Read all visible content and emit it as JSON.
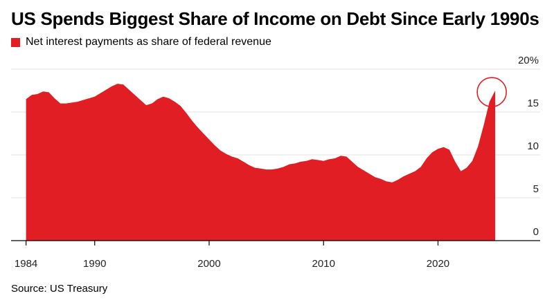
{
  "chart_data": {
    "type": "area",
    "title": "US Spends Biggest Share of Income on Debt Since Early 1990s",
    "series": [
      {
        "name": "Net interest payments as share of federal revenue",
        "color": "#e01e23",
        "points": [
          [
            1984.0,
            16.5
          ],
          [
            1984.5,
            17.0
          ],
          [
            1985.0,
            17.1
          ],
          [
            1985.5,
            17.4
          ],
          [
            1986.0,
            17.3
          ],
          [
            1986.5,
            16.6
          ],
          [
            1987.0,
            16.0
          ],
          [
            1987.5,
            16.0
          ],
          [
            1988.0,
            16.1
          ],
          [
            1988.5,
            16.2
          ],
          [
            1989.0,
            16.4
          ],
          [
            1989.5,
            16.6
          ],
          [
            1990.0,
            16.8
          ],
          [
            1990.5,
            17.2
          ],
          [
            1991.0,
            17.6
          ],
          [
            1991.5,
            18.0
          ],
          [
            1992.0,
            18.3
          ],
          [
            1992.5,
            18.2
          ],
          [
            1993.0,
            17.6
          ],
          [
            1993.5,
            17.0
          ],
          [
            1994.0,
            16.4
          ],
          [
            1994.5,
            15.8
          ],
          [
            1995.0,
            16.0
          ],
          [
            1995.5,
            16.5
          ],
          [
            1996.0,
            16.8
          ],
          [
            1996.5,
            16.6
          ],
          [
            1997.0,
            16.2
          ],
          [
            1997.5,
            15.7
          ],
          [
            1998.0,
            14.9
          ],
          [
            1998.5,
            14.0
          ],
          [
            1999.0,
            13.2
          ],
          [
            1999.5,
            12.5
          ],
          [
            2000.0,
            11.8
          ],
          [
            2000.5,
            11.1
          ],
          [
            2001.0,
            10.5
          ],
          [
            2001.5,
            10.1
          ],
          [
            2002.0,
            9.8
          ],
          [
            2002.5,
            9.6
          ],
          [
            2003.0,
            9.2
          ],
          [
            2003.5,
            8.8
          ],
          [
            2004.0,
            8.5
          ],
          [
            2004.5,
            8.4
          ],
          [
            2005.0,
            8.3
          ],
          [
            2005.5,
            8.3
          ],
          [
            2006.0,
            8.4
          ],
          [
            2006.5,
            8.6
          ],
          [
            2007.0,
            8.9
          ],
          [
            2007.5,
            9.0
          ],
          [
            2008.0,
            9.2
          ],
          [
            2008.5,
            9.3
          ],
          [
            2009.0,
            9.5
          ],
          [
            2009.5,
            9.4
          ],
          [
            2010.0,
            9.3
          ],
          [
            2010.5,
            9.5
          ],
          [
            2011.0,
            9.6
          ],
          [
            2011.5,
            9.9
          ],
          [
            2012.0,
            9.8
          ],
          [
            2012.5,
            9.2
          ],
          [
            2013.0,
            8.6
          ],
          [
            2013.5,
            8.2
          ],
          [
            2014.0,
            7.8
          ],
          [
            2014.5,
            7.4
          ],
          [
            2015.0,
            7.2
          ],
          [
            2015.5,
            6.9
          ],
          [
            2016.0,
            6.8
          ],
          [
            2016.5,
            7.1
          ],
          [
            2017.0,
            7.5
          ],
          [
            2017.5,
            7.8
          ],
          [
            2018.0,
            8.1
          ],
          [
            2018.5,
            8.6
          ],
          [
            2019.0,
            9.6
          ],
          [
            2019.5,
            10.3
          ],
          [
            2020.0,
            10.7
          ],
          [
            2020.5,
            10.9
          ],
          [
            2021.0,
            10.6
          ],
          [
            2021.5,
            9.2
          ],
          [
            2022.0,
            8.1
          ],
          [
            2022.5,
            8.5
          ],
          [
            2023.0,
            9.3
          ],
          [
            2023.5,
            11.0
          ],
          [
            2024.0,
            13.5
          ],
          [
            2024.5,
            16.2
          ],
          [
            2025.0,
            17.5
          ]
        ]
      }
    ],
    "x_ticks": [
      "1984",
      "1990",
      "2000",
      "2010",
      "2020"
    ],
    "x_tick_values": [
      1984,
      1990,
      2000,
      2010,
      2020
    ],
    "y_ticks": [
      "0",
      "5",
      "10",
      "15",
      "20%"
    ],
    "y_tick_values": [
      0,
      5,
      10,
      15,
      20
    ],
    "xlim": [
      1983.5,
      2032
    ],
    "ylim": [
      0,
      20
    ],
    "grid": true,
    "y_axis_side": "right",
    "annotation": "circle at latest value",
    "annotation_point": [
      2024.7,
      17.0
    ]
  },
  "legend": {
    "label": "Net interest payments as share of federal revenue",
    "color": "#e01e23"
  },
  "source": "Source: US Treasury"
}
